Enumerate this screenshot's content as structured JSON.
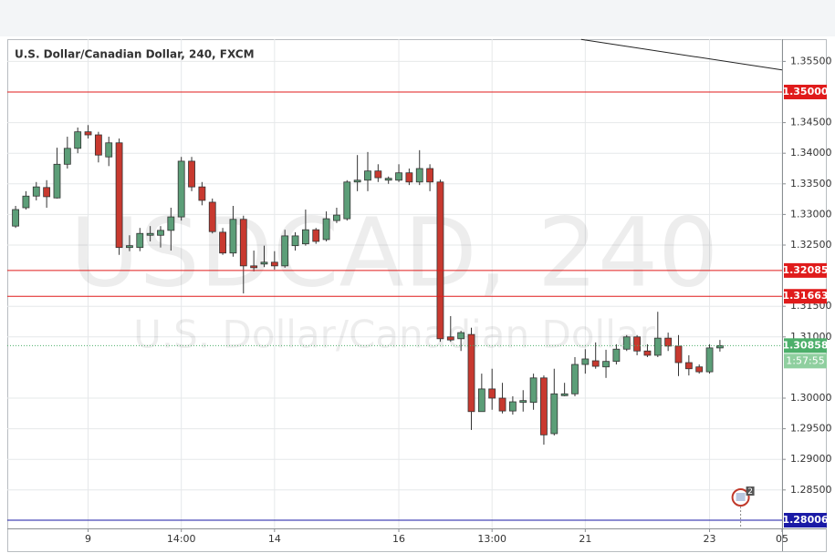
{
  "chart_data": {
    "type": "candlestick",
    "title": "U.S. Dollar/Canadian Dollar, 240, FXCM",
    "watermark": "USDCAD, 240",
    "watermark_subtitle": "U.S. Dollar/Canadian Dollar",
    "x": [
      0,
      1,
      2,
      3,
      4,
      5,
      6,
      7,
      8,
      9,
      10,
      11,
      12,
      13,
      14,
      15,
      16,
      17,
      18,
      19,
      20,
      21,
      22,
      23,
      24,
      25,
      26,
      27,
      28,
      29,
      30,
      31,
      32,
      33,
      34,
      35,
      36,
      37,
      38,
      39,
      40,
      41,
      42,
      43,
      44,
      45,
      46,
      47,
      48,
      49,
      50,
      51,
      52,
      53,
      54,
      55,
      56,
      57,
      58,
      59,
      60,
      61,
      62,
      63,
      64,
      65,
      66,
      67,
      68
    ],
    "open": [
      1.3281,
      1.3311,
      1.333,
      1.3344,
      1.3327,
      1.3382,
      1.3408,
      1.3435,
      1.343,
      1.3394,
      1.3417,
      1.3246,
      1.3246,
      1.3266,
      1.3266,
      1.3274,
      1.3296,
      1.3387,
      1.3345,
      1.332,
      1.3271,
      1.3237,
      1.3292,
      1.3216,
      1.3219,
      1.3222,
      1.3216,
      1.3249,
      1.3252,
      1.3275,
      1.3259,
      1.329,
      1.3293,
      1.3353,
      1.3356,
      1.3371,
      1.3356,
      1.3356,
      1.3368,
      1.3353,
      1.3375,
      1.3353,
      1.31,
      1.3097,
      1.3104,
      1.2978,
      1.3015,
      1.3,
      1.2979,
      1.2993,
      1.2993,
      1.3033,
      1.2942,
      1.3004,
      1.3007,
      1.3055,
      1.3061,
      1.3051,
      1.306,
      1.308,
      1.31,
      1.3077,
      1.307,
      1.3098,
      1.3085,
      1.3058,
      1.3051,
      1.3043,
      1.3082
    ],
    "high": [
      1.3314,
      1.3338,
      1.3353,
      1.3356,
      1.3409,
      1.3427,
      1.3442,
      1.3446,
      1.3435,
      1.3427,
      1.3424,
      1.3266,
      1.3278,
      1.3281,
      1.3281,
      1.3311,
      1.3394,
      1.3394,
      1.3353,
      1.3326,
      1.3278,
      1.3314,
      1.3298,
      1.3241,
      1.3249,
      1.324,
      1.3275,
      1.3271,
      1.3308,
      1.3278,
      1.3305,
      1.3311,
      1.3356,
      1.3397,
      1.3402,
      1.3382,
      1.3362,
      1.3382,
      1.3375,
      1.3405,
      1.3382,
      1.3357,
      1.3134,
      1.311,
      1.3115,
      1.304,
      1.3048,
      1.3025,
      1.3003,
      1.3013,
      1.304,
      1.3037,
      1.3048,
      1.3025,
      1.3067,
      1.308,
      1.3091,
      1.3079,
      1.3088,
      1.3103,
      1.3103,
      1.3088,
      1.3141,
      1.3107,
      1.3103,
      1.307,
      1.3055,
      1.3088,
      1.3095
    ],
    "low": [
      1.3278,
      1.3308,
      1.3323,
      1.3311,
      1.3326,
      1.3375,
      1.34,
      1.3424,
      1.3385,
      1.3379,
      1.3234,
      1.324,
      1.324,
      1.3256,
      1.3246,
      1.3241,
      1.329,
      1.3338,
      1.3315,
      1.3269,
      1.3234,
      1.3231,
      1.3171,
      1.3207,
      1.3214,
      1.321,
      1.3213,
      1.3241,
      1.3249,
      1.3252,
      1.3256,
      1.3286,
      1.329,
      1.3338,
      1.3338,
      1.3353,
      1.335,
      1.3353,
      1.3348,
      1.3348,
      1.3338,
      1.3092,
      1.3092,
      1.3077,
      1.2948,
      1.2978,
      1.2981,
      1.2975,
      1.2973,
      1.2978,
      1.2981,
      1.2924,
      1.2939,
      1.3003,
      1.3003,
      1.304,
      1.3048,
      1.3033,
      1.3055,
      1.3077,
      1.307,
      1.3067,
      1.3067,
      1.3077,
      1.3036,
      1.3037,
      1.304,
      1.304,
      1.3076
    ],
    "close": [
      1.3308,
      1.333,
      1.3345,
      1.3329,
      1.3382,
      1.3408,
      1.3435,
      1.343,
      1.3397,
      1.3417,
      1.3246,
      1.3249,
      1.3269,
      1.3269,
      1.3274,
      1.3296,
      1.3387,
      1.3345,
      1.3323,
      1.3272,
      1.3237,
      1.3292,
      1.3216,
      1.3213,
      1.3222,
      1.3216,
      1.3265,
      1.3265,
      1.3275,
      1.3256,
      1.3293,
      1.3299,
      1.3353,
      1.3356,
      1.3371,
      1.336,
      1.3359,
      1.3368,
      1.3353,
      1.3375,
      1.3353,
      1.3097,
      1.3095,
      1.3107,
      1.2978,
      1.3015,
      1.3,
      1.2979,
      1.2994,
      1.2996,
      1.3033,
      1.294,
      1.3007,
      1.3007,
      1.3055,
      1.3064,
      1.3052,
      1.306,
      1.308,
      1.31,
      1.3077,
      1.307,
      1.3098,
      1.3085,
      1.3058,
      1.3048,
      1.3043,
      1.3082,
      1.30858
    ],
    "up_color": "#5c9e78",
    "down_color": "#c8392f",
    "xlim": [
      -0.8,
      74
    ],
    "xticks": [
      {
        "value": 7,
        "label": "9"
      },
      {
        "value": 16,
        "label": "14:00"
      },
      {
        "value": 25,
        "label": "14"
      },
      {
        "value": 37,
        "label": "16"
      },
      {
        "value": 46,
        "label": "13:00"
      },
      {
        "value": 55,
        "label": "21"
      },
      {
        "value": 67,
        "label": "23"
      },
      {
        "value": 74,
        "label": "05"
      }
    ],
    "ylim": [
      1.27872,
      1.35863
    ],
    "yticks": [
      {
        "value": 1.355,
        "label": "1.35500"
      },
      {
        "value": 1.345,
        "label": "1.34500"
      },
      {
        "value": 1.34,
        "label": "1.34000"
      },
      {
        "value": 1.335,
        "label": "1.33500"
      },
      {
        "value": 1.33,
        "label": "1.33000"
      },
      {
        "value": 1.325,
        "label": "1.32500"
      },
      {
        "value": 1.315,
        "label": "1.31500"
      },
      {
        "value": 1.31,
        "label": "1.31000"
      },
      {
        "value": 1.3,
        "label": "1.30000"
      },
      {
        "value": 1.295,
        "label": "1.29500"
      },
      {
        "value": 1.29,
        "label": "1.29000"
      },
      {
        "value": 1.285,
        "label": "1.28500"
      }
    ],
    "grid": true,
    "levels": [
      {
        "value": 1.35,
        "label": "1.35000",
        "color": "#e01b1b"
      },
      {
        "value": 1.32085,
        "label": "1.32085",
        "color": "#e01b1b"
      },
      {
        "value": 1.31663,
        "label": "1.31663",
        "color": "#e01b1b"
      },
      {
        "value": 1.28006,
        "label": "1.28006",
        "color": "#1a1aa6"
      }
    ],
    "current_price": {
      "value": 1.30858,
      "label": "1.30858",
      "countdown": "1:57:55",
      "color": "#4caf6a"
    },
    "trendline": {
      "x": [
        54.6,
        74
      ],
      "y": [
        1.3586,
        1.3536
      ],
      "color": "#222222"
    },
    "event_marker": {
      "x": 70,
      "label": "2"
    }
  }
}
